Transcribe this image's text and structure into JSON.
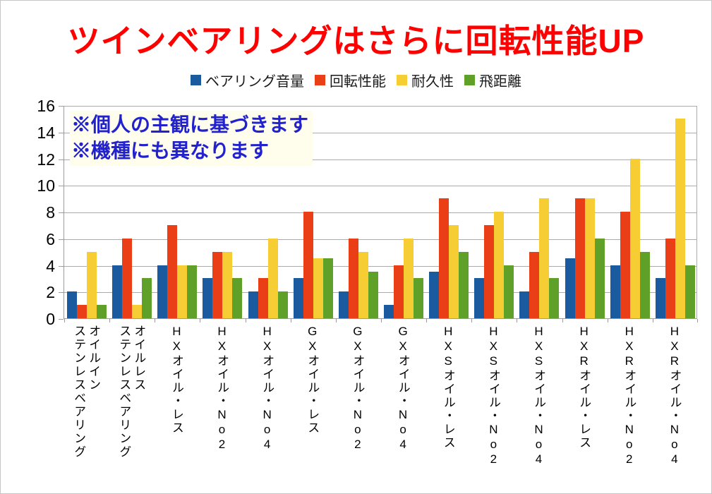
{
  "title": {
    "text": "ツインベアリングはさらに回転性能UP",
    "color": "#ff0000"
  },
  "annotation": {
    "line1": "※個人の主観に基づきます",
    "line2": "※機種にも異なります",
    "color": "#2222cc"
  },
  "chart_data": {
    "type": "bar",
    "title": "ツインベアリングはさらに回転性能UP",
    "xlabel": "",
    "ylabel": "",
    "ylim": [
      0,
      16
    ],
    "ytick_step": 2,
    "grid": true,
    "legend_position": "top",
    "categories": [
      "オイルイン\nステンレスベアリング",
      "オイルレス\nステンレスベアリング",
      "HXオイル・レス",
      "HXオイル・No2",
      "HXオイル・No4",
      "GXオイル・レス",
      "GXオイル・No2",
      "GXオイル・No4",
      "HXSオイル・レス",
      "HXSオイル・No2",
      "HXSオイル・No4",
      "HXRオイル・レス",
      "HXRオイル・No2",
      "HXRオイル・No4"
    ],
    "series": [
      {
        "name": "ベアリング音量",
        "color": "#1a5a9e",
        "values": [
          2,
          4,
          4,
          3,
          2,
          3,
          2,
          1,
          3.5,
          3,
          2,
          4.5,
          4,
          3
        ]
      },
      {
        "name": "回転性能",
        "color": "#ea3e16",
        "values": [
          1,
          6,
          7,
          5,
          3,
          8,
          6,
          4,
          9,
          7,
          5,
          9,
          8,
          6
        ]
      },
      {
        "name": "耐久性",
        "color": "#f6cd32",
        "values": [
          5,
          1,
          4,
          5,
          6,
          4.5,
          5,
          6,
          7,
          8,
          9,
          9,
          12,
          15
        ]
      },
      {
        "name": "飛距離",
        "color": "#5fa028",
        "values": [
          1,
          3,
          4,
          3,
          2,
          4.5,
          3.5,
          3,
          5,
          4,
          3,
          6,
          5,
          4
        ]
      }
    ],
    "annotations": [
      "※個人の主観に基づきます",
      "※機種にも異なります"
    ]
  },
  "axis": {
    "gridline_color": "#ababab",
    "axis_color": "#9c9c9c",
    "background": "#ffffff"
  }
}
